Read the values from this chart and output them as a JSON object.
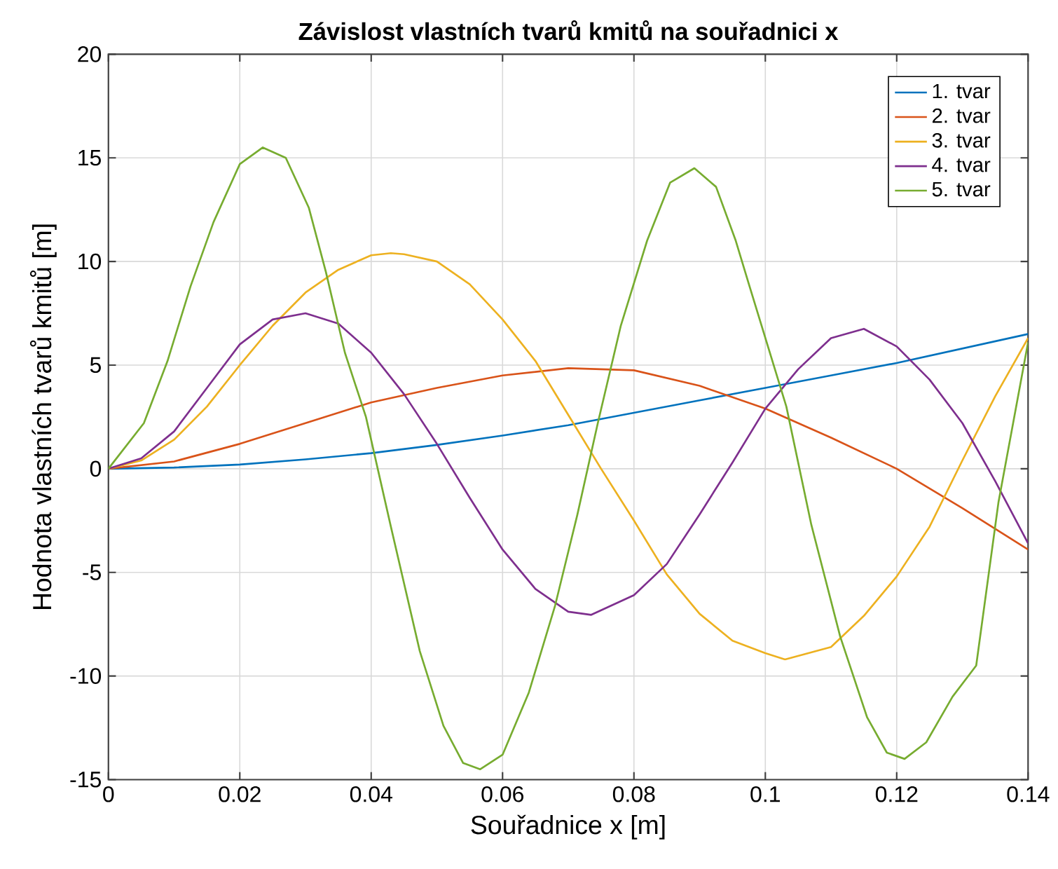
{
  "chart_data": {
    "type": "line",
    "title": "Závislost vlastních tvarů kmitů na souřadnici x",
    "xlabel": "Souřadnice x [m]",
    "ylabel": "Hodnota vlastních tvarů kmitů [m]",
    "xlim": [
      0,
      0.14
    ],
    "ylim": [
      -15,
      20
    ],
    "xticks": [
      0,
      0.02,
      0.04,
      0.06,
      0.08,
      0.1,
      0.12,
      0.14
    ],
    "yticks": [
      -15,
      -10,
      -5,
      0,
      5,
      10,
      15,
      20
    ],
    "grid": true,
    "legend": "top right",
    "marker": "none",
    "line_style": "solid",
    "series": [
      {
        "name": "1. tvar",
        "color": "#0072bd",
        "x": [
          0,
          0.01,
          0.02,
          0.03,
          0.04,
          0.05,
          0.06,
          0.07,
          0.08,
          0.09,
          0.1,
          0.11,
          0.12,
          0.13,
          0.14
        ],
        "values": [
          0,
          0.06,
          0.2,
          0.45,
          0.75,
          1.15,
          1.6,
          2.1,
          2.7,
          3.3,
          3.9,
          4.5,
          5.1,
          5.8,
          6.5
        ]
      },
      {
        "name": "2. tvar",
        "color": "#d95319",
        "x": [
          0,
          0.01,
          0.02,
          0.03,
          0.04,
          0.05,
          0.06,
          0.07,
          0.08,
          0.09,
          0.1,
          0.11,
          0.12,
          0.13,
          0.14
        ],
        "values": [
          0,
          0.35,
          1.2,
          2.2,
          3.2,
          3.9,
          4.5,
          4.85,
          4.75,
          4.0,
          2.9,
          1.5,
          0,
          -1.9,
          -3.9
        ]
      },
      {
        "name": "3. tvar",
        "color": "#edb120",
        "x": [
          0,
          0.005,
          0.01,
          0.015,
          0.02,
          0.025,
          0.03,
          0.035,
          0.04,
          0.043,
          0.045,
          0.05,
          0.055,
          0.06,
          0.065,
          0.07,
          0.075,
          0.08,
          0.085,
          0.09,
          0.095,
          0.1,
          0.103,
          0.11,
          0.115,
          0.12,
          0.125,
          0.13,
          0.135,
          0.14
        ],
        "values": [
          0,
          0.4,
          1.4,
          3.0,
          5.0,
          6.9,
          8.5,
          9.6,
          10.3,
          10.4,
          10.35,
          10.0,
          8.9,
          7.2,
          5.2,
          2.6,
          0.0,
          -2.5,
          -5.1,
          -7.0,
          -8.3,
          -8.9,
          -9.2,
          -8.6,
          -7.1,
          -5.2,
          -2.8,
          0.4,
          3.5,
          6.3
        ]
      },
      {
        "name": "4. tvar",
        "color": "#7e2f8e",
        "x": [
          0,
          0.005,
          0.01,
          0.015,
          0.02,
          0.025,
          0.03,
          0.035,
          0.04,
          0.045,
          0.05,
          0.055,
          0.06,
          0.065,
          0.07,
          0.0735,
          0.08,
          0.085,
          0.09,
          0.095,
          0.1,
          0.105,
          0.11,
          0.115,
          0.12,
          0.125,
          0.13,
          0.135,
          0.14
        ],
        "values": [
          0,
          0.5,
          1.8,
          3.9,
          6.0,
          7.2,
          7.5,
          7.0,
          5.6,
          3.6,
          1.2,
          -1.4,
          -3.9,
          -5.8,
          -6.9,
          -7.05,
          -6.1,
          -4.6,
          -2.2,
          0.3,
          2.9,
          4.8,
          6.3,
          6.75,
          5.9,
          4.3,
          2.2,
          -0.6,
          -3.6
        ]
      },
      {
        "name": "5. tvar",
        "color": "#77ac30",
        "x": [
          0,
          0.0054,
          0.009,
          0.0125,
          0.016,
          0.02,
          0.0235,
          0.027,
          0.0305,
          0.0331,
          0.036,
          0.0392,
          0.043,
          0.0474,
          0.051,
          0.054,
          0.0566,
          0.06,
          0.064,
          0.068,
          0.0714,
          0.0745,
          0.078,
          0.082,
          0.0855,
          0.0892,
          0.0925,
          0.0955,
          0.0976,
          0.1032,
          0.107,
          0.1114,
          0.1155,
          0.1185,
          0.1212,
          0.1245,
          0.1285,
          0.1321,
          0.1355,
          0.14
        ],
        "values": [
          0,
          2.2,
          5.2,
          8.8,
          11.9,
          14.7,
          15.5,
          15.0,
          12.6,
          9.5,
          5.6,
          2.5,
          -2.8,
          -8.8,
          -12.4,
          -14.2,
          -14.5,
          -13.8,
          -10.8,
          -6.6,
          -2.2,
          2.2,
          6.9,
          11.0,
          13.8,
          14.5,
          13.6,
          11.0,
          8.8,
          3.0,
          -2.7,
          -8.1,
          -12.0,
          -13.7,
          -14.0,
          -13.2,
          -11.0,
          -9.5,
          -1.6,
          6.1
        ]
      }
    ]
  }
}
